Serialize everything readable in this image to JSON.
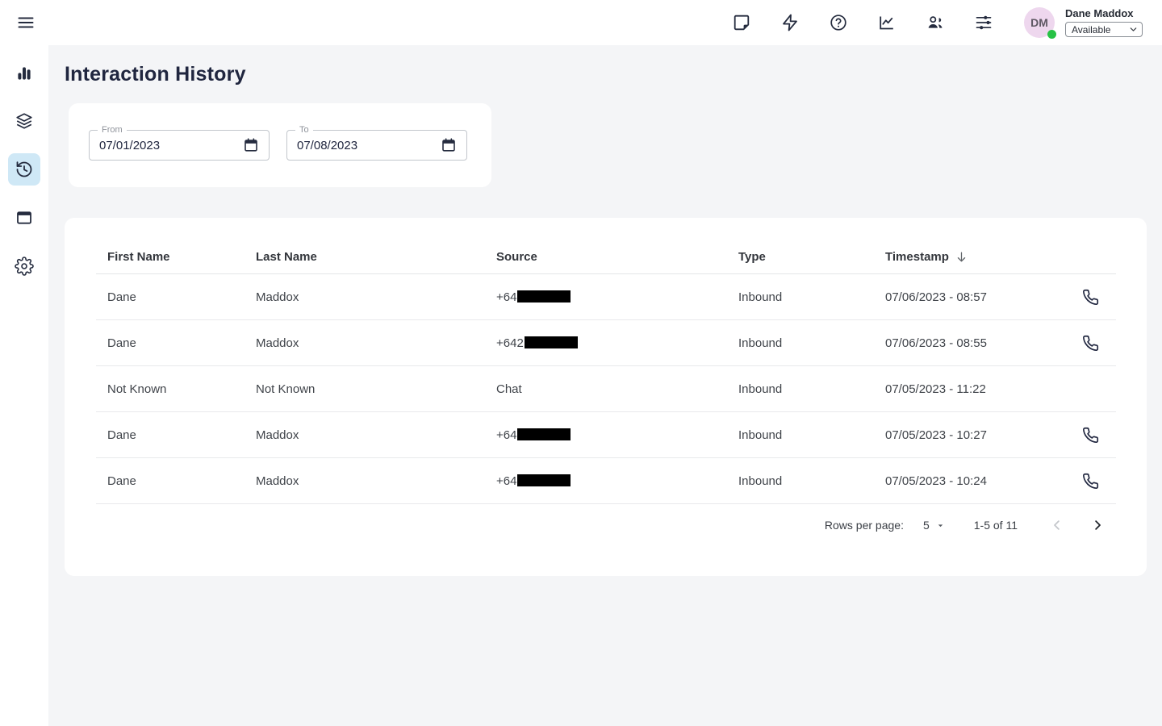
{
  "colors": {
    "selected_item_bg": "#cfe8f6",
    "avatar_bg": "#eed7ee",
    "status_green": "#27c245",
    "text_dark_navy": "#20263f",
    "content_bg": "#f4f5f7",
    "redaction": "#000000"
  },
  "topbar": {
    "icons": [
      "notes-icon",
      "quick-actions-icon",
      "help-icon",
      "analytics-icon",
      "contacts-icon",
      "preferences-icon"
    ],
    "user": {
      "name": "Dane Maddox",
      "initials": "DM",
      "status": "Available"
    }
  },
  "sidebar": {
    "items": [
      "dashboard",
      "queues",
      "interaction-history",
      "workspace",
      "settings"
    ],
    "selected": "interaction-history"
  },
  "page": {
    "title": "Interaction History"
  },
  "filters": {
    "from": {
      "label": "From",
      "value": "07/01/2023"
    },
    "to": {
      "label": "To",
      "value": "07/08/2023"
    }
  },
  "table": {
    "columns": [
      "First Name",
      "Last Name",
      "Source",
      "Type",
      "Timestamp"
    ],
    "sorted_column": "Timestamp",
    "sort_direction": "desc",
    "rows": [
      {
        "first": "Dane",
        "last": "Maddox",
        "source": "+64",
        "redacted": true,
        "type": "Inbound",
        "timestamp": "07/06/2023 - 08:57",
        "phone": true
      },
      {
        "first": "Dane",
        "last": "Maddox",
        "source": "+642",
        "redacted": true,
        "type": "Inbound",
        "timestamp": "07/06/2023 - 08:55",
        "phone": true
      },
      {
        "first": "Not Known",
        "last": "Not Known",
        "source": "Chat",
        "redacted": false,
        "type": "Inbound",
        "timestamp": "07/05/2023 - 11:22",
        "phone": false
      },
      {
        "first": "Dane",
        "last": "Maddox",
        "source": "+64",
        "redacted": true,
        "type": "Inbound",
        "timestamp": "07/05/2023 - 10:27",
        "phone": true
      },
      {
        "first": "Dane",
        "last": "Maddox",
        "source": "+64",
        "redacted": true,
        "type": "Inbound",
        "timestamp": "07/05/2023 - 10:24",
        "phone": true
      }
    ]
  },
  "pagination": {
    "rows_per_page_label": "Rows per page:",
    "rows_per_page_value": "5",
    "range": "1-5 of 11"
  }
}
